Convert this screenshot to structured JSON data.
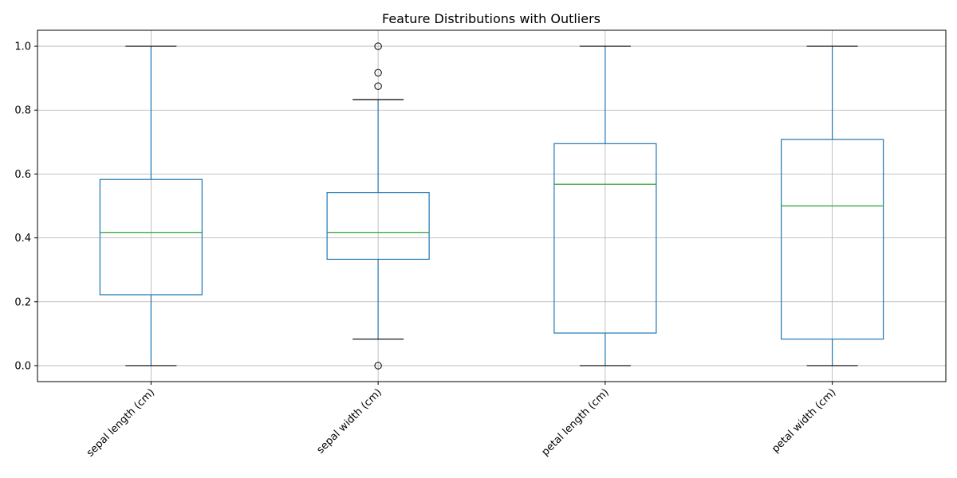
{
  "chart_data": {
    "type": "boxplot",
    "title": "Feature Distributions with Outliers",
    "xlabel": "",
    "ylabel": "",
    "ylim": [
      -0.05,
      1.05
    ],
    "yticks": [
      0.0,
      0.2,
      0.4,
      0.6,
      0.8,
      1.0
    ],
    "ytick_labels": [
      "0.0",
      "0.2",
      "0.4",
      "0.6",
      "0.8",
      "1.0"
    ],
    "grid": true,
    "categories": [
      "sepal length (cm)",
      "sepal width (cm)",
      "petal length (cm)",
      "petal width (cm)"
    ],
    "boxes": [
      {
        "whisker_low": 0.0,
        "q1": 0.222,
        "median": 0.417,
        "q3": 0.583,
        "whisker_high": 1.0,
        "outliers": []
      },
      {
        "whisker_low": 0.083,
        "q1": 0.333,
        "median": 0.417,
        "q3": 0.542,
        "whisker_high": 0.833,
        "outliers": [
          0.0,
          0.875,
          0.917,
          1.0
        ]
      },
      {
        "whisker_low": 0.0,
        "q1": 0.102,
        "median": 0.568,
        "q3": 0.695,
        "whisker_high": 1.0,
        "outliers": []
      },
      {
        "whisker_low": 0.0,
        "q1": 0.083,
        "median": 0.5,
        "q3": 0.708,
        "whisker_high": 1.0,
        "outliers": []
      }
    ],
    "colors": {
      "box": "#1f77b4",
      "median": "#2ca02c",
      "cap": "#000000",
      "grid": "#b0b0b0",
      "outlier": "#000000"
    }
  }
}
